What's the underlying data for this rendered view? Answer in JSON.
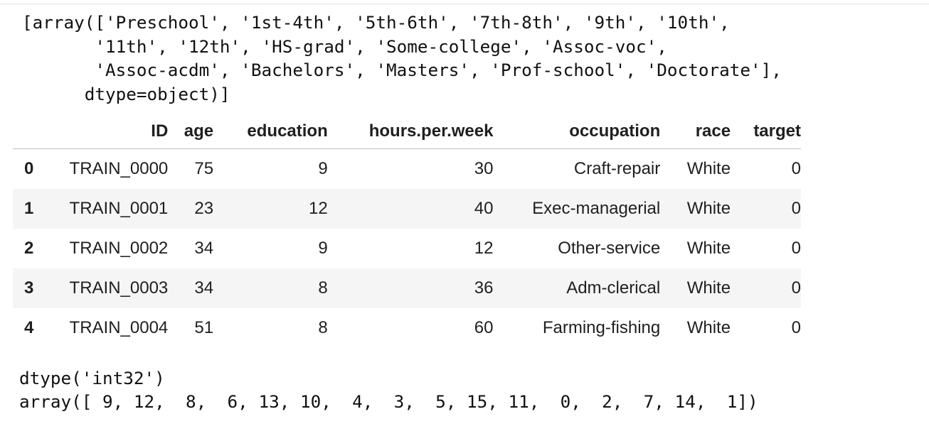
{
  "output_array_text": "[array(['Preschool', '1st-4th', '5th-6th', '7th-8th', '9th', '10th',\n       '11th', '12th', 'HS-grad', 'Some-college', 'Assoc-voc',\n       'Assoc-acdm', 'Bachelors', 'Masters', 'Prof-school', 'Doctorate'],\n      dtype=object)]",
  "dataframe": {
    "columns": [
      "ID",
      "age",
      "education",
      "hours.per.week",
      "occupation",
      "race",
      "target"
    ],
    "rows": [
      {
        "index": "0",
        "ID": "TRAIN_0000",
        "age": "75",
        "education": "9",
        "hours_per_week": "30",
        "occupation": "Craft-repair",
        "race": "White",
        "target": "0"
      },
      {
        "index": "1",
        "ID": "TRAIN_0001",
        "age": "23",
        "education": "12",
        "hours_per_week": "40",
        "occupation": "Exec-managerial",
        "race": "White",
        "target": "0"
      },
      {
        "index": "2",
        "ID": "TRAIN_0002",
        "age": "34",
        "education": "9",
        "hours_per_week": "12",
        "occupation": "Other-service",
        "race": "White",
        "target": "0"
      },
      {
        "index": "3",
        "ID": "TRAIN_0003",
        "age": "34",
        "education": "8",
        "hours_per_week": "36",
        "occupation": "Adm-clerical",
        "race": "White",
        "target": "0"
      },
      {
        "index": "4",
        "ID": "TRAIN_0004",
        "age": "51",
        "education": "8",
        "hours_per_week": "60",
        "occupation": "Farming-fishing",
        "race": "White",
        "target": "0"
      }
    ]
  },
  "output_dtype_text": "dtype('int32')\narray([ 9, 12,  8,  6, 13, 10,  4,  3,  5, 15, 11,  0,  2,  7, 14,  1])"
}
